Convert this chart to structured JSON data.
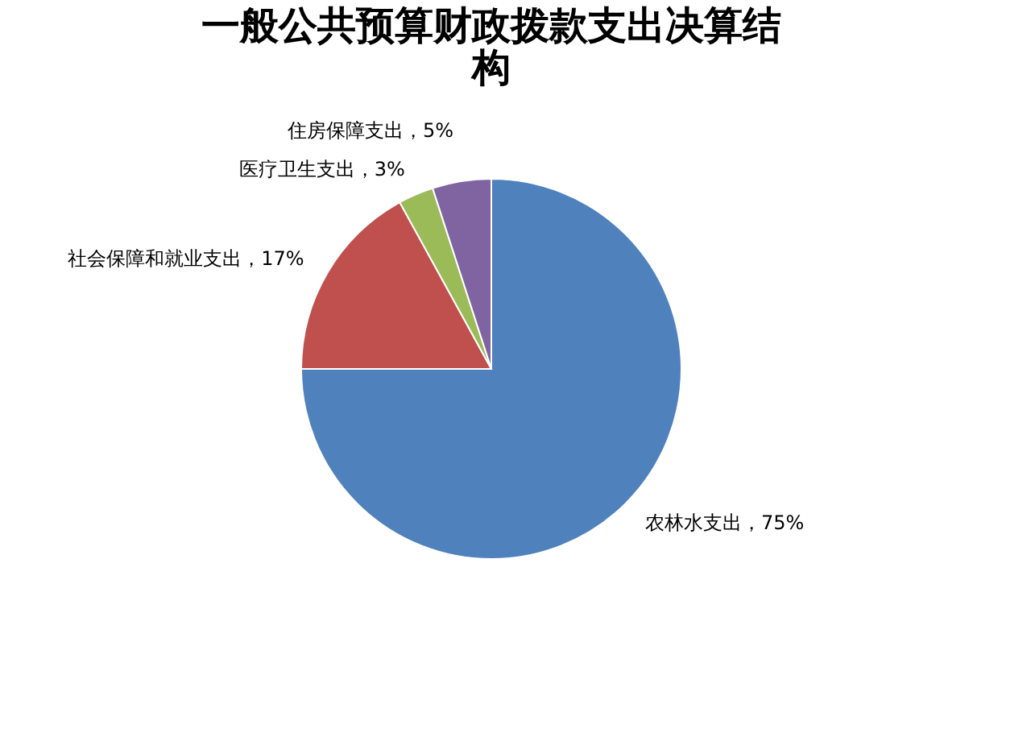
{
  "chart_data": {
    "type": "pie",
    "title": "一般公共预算财政拨款支出决算结构",
    "categories": [
      "农林水支出",
      "社会保障和就业支出",
      "医疗卫生支出",
      "住房保障支出"
    ],
    "values": [
      75,
      17,
      3,
      5
    ],
    "colors": [
      "#4f81bd",
      "#c0504d",
      "#9bbb59",
      "#8064a2"
    ],
    "value_labels": [
      "75%",
      "17%",
      "3%",
      "5%"
    ],
    "legend": false
  }
}
